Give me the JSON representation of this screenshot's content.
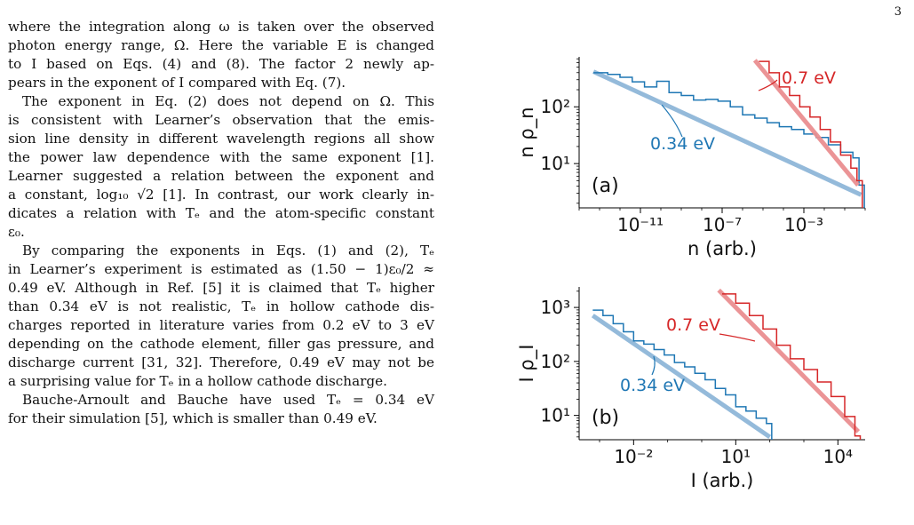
{
  "page_number": "3",
  "body": {
    "lines": [
      "where the integration along ω is taken over the observed",
      "photon energy range, Ω. Here the variable E is changed",
      "to I based on Eqs. (4) and (8). The factor 2 newly ap-",
      "pears in the exponent of I compared with Eq. (7).",
      "The exponent in Eq. (2) does not depend on Ω. This",
      "is consistent with Learner’s observation that the emis-",
      "sion line density in different wavelength regions all show",
      "the power law dependence with the same exponent [1].",
      "Learner suggested a relation between the exponent and",
      "a constant, log₁₀ √2 [1]. In contrast, our work clearly in-",
      "dicates a relation with Tₑ and the atom-specific constant",
      "ε₀.",
      "By comparing the exponents in Eqs. (1) and (2), Tₑ",
      "in Learner’s experiment is estimated as (1.50 − 1)ε₀/2 ≈",
      "0.49 eV. Although in Ref. [5] it is claimed that Tₑ higher",
      "than 0.34 eV is not realistic, Tₑ in hollow cathode dis-",
      "charges reported in literature varies from 0.2 eV to 3 eV",
      "depending on the cathode element, filler gas pressure, and",
      "discharge current [31, 32]. Therefore, 0.49 eV may not be",
      "a surprising value for Tₑ in a hollow cathode discharge.",
      "Bauche-Arnoult and Bauche have used Tₑ = 0.34 eV",
      "for their simulation [5], which is smaller than 0.49 eV."
    ]
  },
  "colors": {
    "blue": "#1f77b4",
    "blue_fit": "#8fb7d9",
    "red": "#d62728",
    "red_fit": "#ea8f91"
  },
  "chart_data": [
    {
      "type": "line",
      "panel_label": "(a)",
      "xlabel": "n (arb.)",
      "ylabel": "n ρ_n",
      "x_log": true,
      "y_log": true,
      "xlim_log10": [
        -14,
        0
      ],
      "ylim_log10": [
        0.22,
        2.88
      ],
      "xticks": [
        {
          "exp": -11,
          "label": "10⁻¹¹"
        },
        {
          "exp": -7,
          "label": "10⁻⁷"
        },
        {
          "exp": -3,
          "label": "10⁻³"
        }
      ],
      "yticks": [
        {
          "exp": 1,
          "label": "10¹"
        },
        {
          "exp": 2,
          "label": "10²"
        }
      ],
      "series": [
        {
          "name": "0.34 eV",
          "color": "#1f77b4",
          "steps_log10": [
            [
              -13.3,
              2.6
            ],
            [
              -12.6,
              2.57
            ],
            [
              -12.0,
              2.52
            ],
            [
              -11.4,
              2.44
            ],
            [
              -10.8,
              2.35
            ],
            [
              -10.2,
              2.45
            ],
            [
              -9.6,
              2.25
            ],
            [
              -9.0,
              2.2
            ],
            [
              -8.4,
              2.12
            ],
            [
              -7.8,
              2.13
            ],
            [
              -7.2,
              2.1
            ],
            [
              -6.6,
              2.0
            ],
            [
              -6.0,
              1.86
            ],
            [
              -5.4,
              1.8
            ],
            [
              -4.8,
              1.72
            ],
            [
              -4.2,
              1.65
            ],
            [
              -3.6,
              1.6
            ],
            [
              -3.0,
              1.52
            ],
            [
              -2.4,
              1.46
            ],
            [
              -1.8,
              1.33
            ],
            [
              -1.2,
              1.2
            ],
            [
              -0.6,
              1.1
            ],
            [
              -0.3,
              0.62
            ]
          ],
          "fit_log10": [
            [
              -13.3,
              2.62
            ],
            [
              -0.2,
              0.45
            ]
          ]
        },
        {
          "name": "0.7 eV",
          "color": "#d62728",
          "steps_log10": [
            [
              -5.2,
              2.8
            ],
            [
              -4.7,
              2.6
            ],
            [
              -4.2,
              2.35
            ],
            [
              -3.7,
              2.2
            ],
            [
              -3.2,
              2.0
            ],
            [
              -2.7,
              1.82
            ],
            [
              -2.2,
              1.6
            ],
            [
              -1.7,
              1.38
            ],
            [
              -1.2,
              1.15
            ],
            [
              -0.7,
              0.92
            ],
            [
              -0.4,
              0.7
            ]
          ],
          "fit_log10": [
            [
              -5.4,
              2.82
            ],
            [
              -0.35,
              0.62
            ]
          ]
        }
      ],
      "annotations": [
        "0.34 eV",
        "0.7 eV"
      ]
    },
    {
      "type": "line",
      "panel_label": "(b)",
      "xlabel": "I (arb.)",
      "ylabel": "I ρ_I",
      "x_log": true,
      "y_log": true,
      "xlim_log10": [
        -3.6,
        4.8
      ],
      "ylim_log10": [
        0.55,
        3.38
      ],
      "xticks": [
        {
          "exp": -2,
          "label": "10⁻²"
        },
        {
          "exp": 1,
          "label": "10¹"
        },
        {
          "exp": 4,
          "label": "10⁴"
        }
      ],
      "yticks": [
        {
          "exp": 1,
          "label": "10¹"
        },
        {
          "exp": 2,
          "label": "10²"
        },
        {
          "exp": 3,
          "label": "10³"
        }
      ],
      "series": [
        {
          "name": "0.34 eV",
          "color": "#1f77b4",
          "steps_log10": [
            [
              -3.2,
              2.95
            ],
            [
              -2.9,
              2.85
            ],
            [
              -2.6,
              2.7
            ],
            [
              -2.3,
              2.55
            ],
            [
              -2.0,
              2.38
            ],
            [
              -1.7,
              2.32
            ],
            [
              -1.4,
              2.22
            ],
            [
              -1.1,
              2.12
            ],
            [
              -0.8,
              1.98
            ],
            [
              -0.5,
              1.9
            ],
            [
              -0.2,
              1.78
            ],
            [
              0.1,
              1.66
            ],
            [
              0.4,
              1.5
            ],
            [
              0.7,
              1.38
            ],
            [
              1.0,
              1.16
            ],
            [
              1.3,
              1.08
            ],
            [
              1.6,
              0.95
            ],
            [
              1.9,
              0.85
            ]
          ],
          "fit_log10": [
            [
              -3.2,
              2.85
            ],
            [
              2.0,
              0.6
            ]
          ]
        },
        {
          "name": "0.7 eV",
          "color": "#d62728",
          "steps_log10": [
            [
              0.6,
              3.25
            ],
            [
              1.0,
              3.08
            ],
            [
              1.4,
              2.85
            ],
            [
              1.8,
              2.6
            ],
            [
              2.2,
              2.3
            ],
            [
              2.6,
              2.05
            ],
            [
              3.0,
              1.85
            ],
            [
              3.4,
              1.62
            ],
            [
              3.8,
              1.35
            ],
            [
              4.2,
              0.98
            ],
            [
              4.5,
              0.62
            ]
          ],
          "fit_log10": [
            [
              0.5,
              3.32
            ],
            [
              4.6,
              0.7
            ]
          ]
        }
      ],
      "annotations": [
        "0.34 eV",
        "0.7 eV"
      ]
    }
  ]
}
